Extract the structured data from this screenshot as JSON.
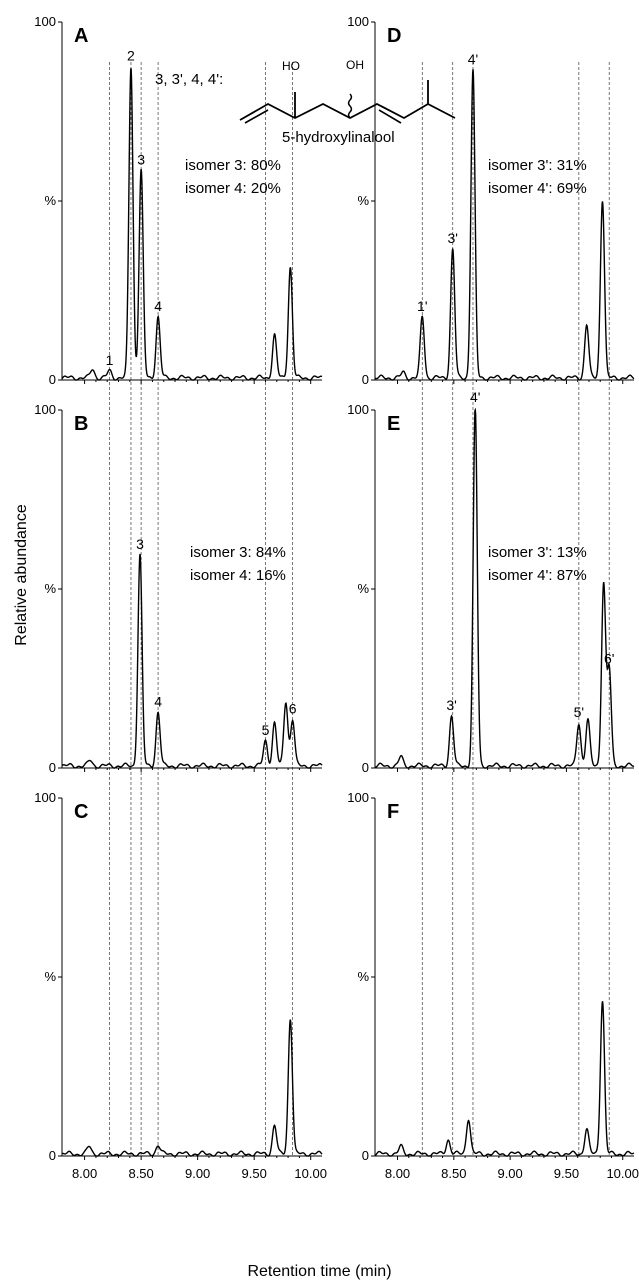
{
  "figure": {
    "ylabel": "Relative abundance",
    "xlabel": "Retention time (min)",
    "x_ticks": [
      "8.00",
      "8.50",
      "9.00",
      "9.50",
      "10.00"
    ],
    "y_ticks": [
      "100",
      "%",
      "0"
    ],
    "compound": {
      "isomer_list": "3, 3', 4, 4':",
      "name": "5-hydroxylinalool",
      "oh_label_1": "HO",
      "oh_label_2": "OH"
    },
    "colors": {
      "trace": "#000000",
      "guide": "#555555",
      "background": "#ffffff"
    }
  },
  "chart_data": [
    {
      "panel": "A",
      "type": "line",
      "xlim": [
        7.8,
        10.1
      ],
      "ylim": [
        0,
        100
      ],
      "y_mid_tick_label": "%",
      "peaks": [
        [
          8.07,
          2.5
        ],
        [
          8.22,
          2
        ],
        [
          8.41,
          87
        ],
        [
          8.5,
          58
        ],
        [
          8.65,
          17
        ],
        [
          9.68,
          12
        ],
        [
          9.82,
          31
        ]
      ],
      "peak_labels": [
        {
          "text": "1",
          "x": 8.22,
          "y": 2
        },
        {
          "text": "2",
          "x": 8.41,
          "y": 87
        },
        {
          "text": "3",
          "x": 8.5,
          "y": 58
        },
        {
          "text": "4",
          "x": 8.65,
          "y": 17
        }
      ],
      "isomer_text": [
        "isomer 3: 80%",
        "isomer 4: 20%"
      ]
    },
    {
      "panel": "B",
      "type": "line",
      "xlim": [
        7.8,
        10.1
      ],
      "ylim": [
        0,
        100
      ],
      "y_mid_tick_label": "%",
      "peaks": [
        [
          8.05,
          1.5
        ],
        [
          8.49,
          59
        ],
        [
          8.65,
          15
        ],
        [
          9.6,
          7
        ],
        [
          9.68,
          12
        ],
        [
          9.78,
          18
        ],
        [
          9.84,
          13
        ]
      ],
      "peak_labels": [
        {
          "text": "3",
          "x": 8.49,
          "y": 59
        },
        {
          "text": "4",
          "x": 8.65,
          "y": 15
        },
        {
          "text": "5",
          "x": 9.6,
          "y": 7
        },
        {
          "text": "6",
          "x": 9.84,
          "y": 13
        }
      ],
      "isomer_text": [
        "isomer 3: 84%",
        "isomer 4: 16%"
      ]
    },
    {
      "panel": "C",
      "type": "line",
      "xlim": [
        7.8,
        10.1
      ],
      "ylim": [
        0,
        100
      ],
      "y_mid_tick_label": "%",
      "peaks": [
        [
          8.04,
          2
        ],
        [
          8.65,
          2.5
        ],
        [
          9.68,
          8
        ],
        [
          9.82,
          38
        ]
      ],
      "peak_labels": [],
      "isomer_text": []
    },
    {
      "panel": "D",
      "type": "line",
      "xlim": [
        7.8,
        10.1
      ],
      "ylim": [
        0,
        100
      ],
      "y_mid_tick_label": "%",
      "peaks": [
        [
          8.05,
          1.5
        ],
        [
          8.22,
          17
        ],
        [
          8.49,
          36
        ],
        [
          8.67,
          86
        ],
        [
          9.68,
          15
        ],
        [
          9.82,
          50
        ]
      ],
      "peak_labels": [
        {
          "text": "1'",
          "x": 8.22,
          "y": 17
        },
        {
          "text": "3'",
          "x": 8.49,
          "y": 36
        },
        {
          "text": "4'",
          "x": 8.67,
          "y": 86
        }
      ],
      "isomer_text": [
        "isomer 3': 31%",
        "isomer 4': 69%"
      ]
    },
    {
      "panel": "E",
      "type": "line",
      "xlim": [
        7.8,
        10.1
      ],
      "ylim": [
        0,
        100
      ],
      "y_mid_tick_label": "%",
      "peaks": [
        [
          8.03,
          2.5
        ],
        [
          8.48,
          14
        ],
        [
          8.69,
          100
        ],
        [
          9.61,
          12
        ],
        [
          9.69,
          13
        ],
        [
          9.83,
          51
        ],
        [
          9.88,
          27
        ]
      ],
      "peak_labels": [
        {
          "text": "3'",
          "x": 8.48,
          "y": 14
        },
        {
          "text": "4'",
          "x": 8.69,
          "y": 100
        },
        {
          "text": "5'",
          "x": 9.61,
          "y": 12
        },
        {
          "text": "6'",
          "x": 9.88,
          "y": 27
        }
      ],
      "isomer_text": [
        "isomer 3': 13%",
        "isomer 4': 87%"
      ]
    },
    {
      "panel": "F",
      "type": "line",
      "xlim": [
        7.8,
        10.1
      ],
      "ylim": [
        0,
        100
      ],
      "y_mid_tick_label": "%",
      "peaks": [
        [
          8.03,
          2
        ],
        [
          8.45,
          4
        ],
        [
          8.63,
          10
        ],
        [
          9.68,
          7
        ],
        [
          9.82,
          43
        ]
      ],
      "peak_labels": [],
      "isomer_text": []
    }
  ],
  "reference_lines": [
    {
      "panels": [
        "A",
        "B",
        "C"
      ],
      "x": [
        8.22,
        8.41,
        8.5,
        8.65,
        9.6,
        9.84
      ]
    },
    {
      "panels": [
        "D",
        "E",
        "F"
      ],
      "x": [
        8.22,
        8.49,
        8.67,
        9.61,
        9.88
      ]
    }
  ]
}
